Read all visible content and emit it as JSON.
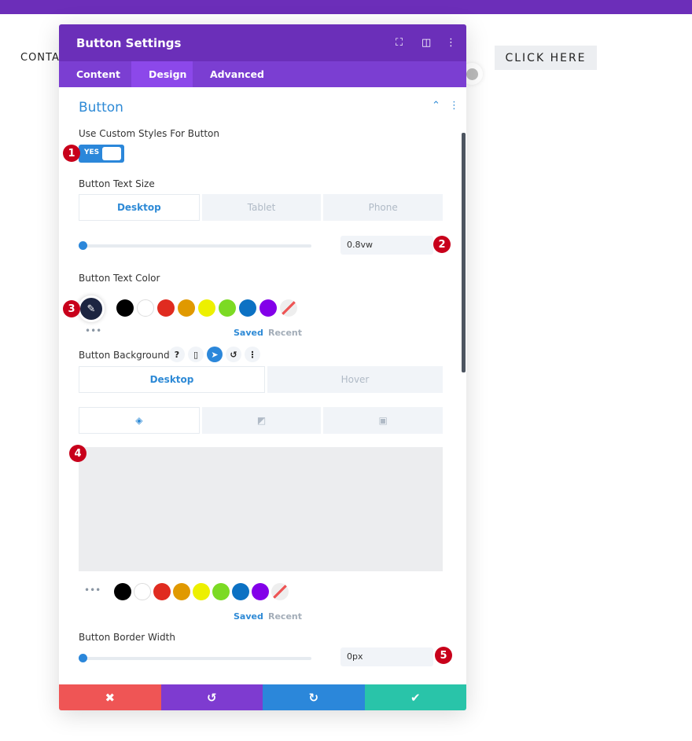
{
  "page": {
    "nav_text": "CONTA",
    "button_text": "CLICK HERE",
    "top_bar_color": "#6c2eb9"
  },
  "modal": {
    "title": "Button Settings",
    "tabs": [
      {
        "label": "Content"
      },
      {
        "label": "Design",
        "active": true
      },
      {
        "label": "Advanced"
      }
    ],
    "section_title": "Button",
    "custom_styles": {
      "label": "Use Custom Styles For Button",
      "value": "YES"
    },
    "text_size": {
      "label": "Button Text Size",
      "devices": [
        "Desktop",
        "Tablet",
        "Phone"
      ],
      "value": "0.8vw",
      "slider_percent": 0
    },
    "text_color": {
      "label": "Button Text Color",
      "swatches": [
        "#000000",
        "#ffffff",
        "#e02b20",
        "#e09900",
        "#edf000",
        "#7cda24",
        "#0c71c3",
        "#8300e9"
      ],
      "saved": "Saved",
      "recent": "Recent"
    },
    "background": {
      "label": "Button Background",
      "states": [
        "Desktop",
        "Hover"
      ],
      "preview_color": "#ecedef",
      "saved": "Saved",
      "recent": "Recent"
    },
    "border_width": {
      "label": "Button Border Width",
      "value": "0px",
      "slider_percent": 0
    },
    "footer": {
      "colors": [
        "#ef5555",
        "#7e3bd0",
        "#2b87da",
        "#29c4a9"
      ]
    }
  },
  "badges": [
    "1",
    "2",
    "3",
    "4",
    "5"
  ],
  "accent": "#2b87da"
}
